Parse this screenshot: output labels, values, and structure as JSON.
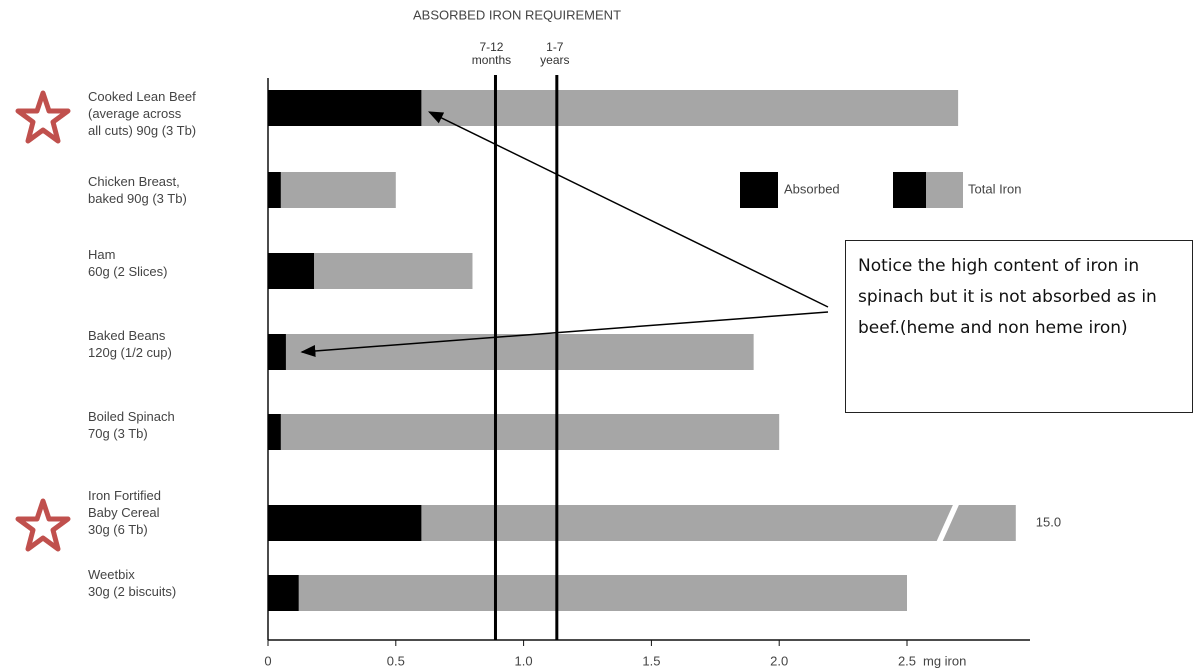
{
  "chart_data": {
    "type": "bar",
    "reference_title": "ABSORBED IRON REQUIREMENT",
    "reference_lines": [
      {
        "value": 0.89,
        "label": "7-12\nmonths"
      },
      {
        "value": 1.13,
        "label": "1-7\nyears"
      }
    ],
    "categories": [
      "Cooked Lean Beef\n(average across\nall cuts) 90g (3 Tb)",
      "Chicken Breast,\nbaked 90g (3 Tb)",
      "Ham\n60g (2 Slices)",
      "Baked Beans\n120g (1/2 cup)",
      "Boiled Spinach\n70g (3 Tb)",
      "Iron Fortified\nBaby Cereal\n30g (6 Tb)",
      "Weetbix\n30g (2 biscuits)"
    ],
    "series": [
      {
        "name": "Total Iron",
        "color": "#a6a6a6",
        "values": [
          2.7,
          0.5,
          0.8,
          1.9,
          2.0,
          15.0,
          2.5
        ],
        "value_labels": [
          null,
          null,
          null,
          null,
          null,
          "15.0",
          null
        ]
      },
      {
        "name": "Absorbed",
        "color": "#000000",
        "values": [
          0.6,
          0.05,
          0.18,
          0.07,
          0.05,
          0.6,
          0.12
        ]
      }
    ],
    "xlim": [
      0,
      3
    ],
    "xticks": [
      0,
      0.5,
      {
        "value": 1,
        "label": "1.0"
      },
      1.5,
      {
        "value": 2,
        "label": "2.0"
      },
      2.5
    ],
    "xlabel": "mg iron",
    "annotation": "Notice the high content of iron in spinach but it is not absorbed as in beef.(heme and non heme iron)"
  }
}
